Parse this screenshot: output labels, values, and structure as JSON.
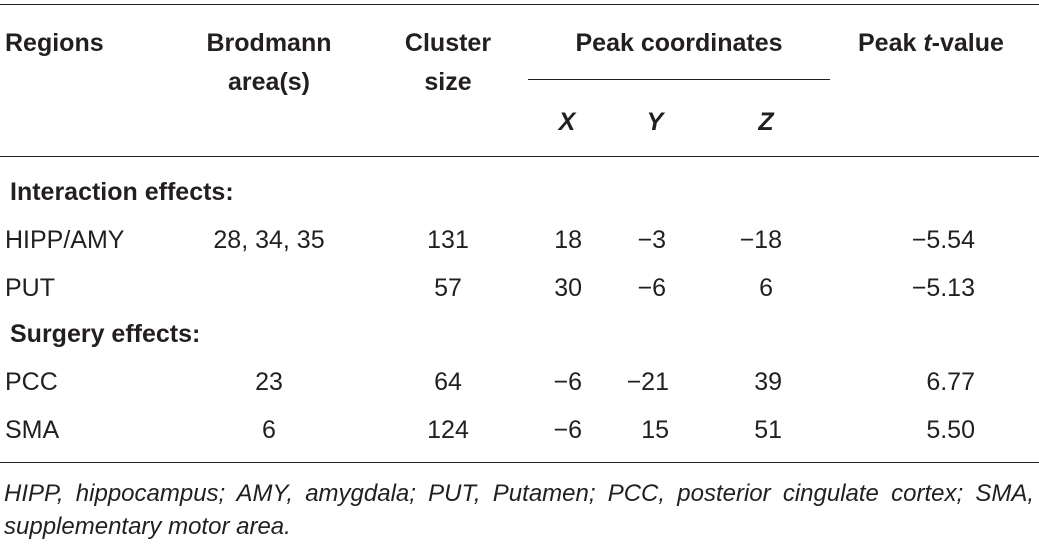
{
  "table": {
    "headers": {
      "regions": "Regions",
      "brodmann": [
        "Brodmann",
        "area(s)"
      ],
      "cluster": [
        "Cluster",
        "size"
      ],
      "peak_coords": "Peak coordinates",
      "peak_t_prefix": "Peak ",
      "peak_t_italic": "t",
      "peak_t_suffix": "-value",
      "x": "X",
      "y": "Y",
      "z": "Z"
    },
    "sections": [
      {
        "title": "Interaction effects:",
        "rows": [
          {
            "region": "HIPP/AMY",
            "brodmann": "28, 34, 35",
            "cluster": "131",
            "x": "18",
            "y": "−3",
            "z": "−18",
            "t": "−5.54"
          },
          {
            "region": "PUT",
            "brodmann": "",
            "cluster": "57",
            "x": "30",
            "y": "−6",
            "z": "6",
            "t": "−5.13"
          }
        ]
      },
      {
        "title": "Surgery effects:",
        "rows": [
          {
            "region": "PCC",
            "brodmann": "23",
            "cluster": "64",
            "x": "−6",
            "y": "−21",
            "z": "39",
            "t": "6.77"
          },
          {
            "region": "SMA",
            "brodmann": "6",
            "cluster": "124",
            "x": "−6",
            "y": "15",
            "z": "51",
            "t": "5.50"
          }
        ]
      }
    ],
    "footnote": "HIPP, hippocampus; AMY, amygdala; PUT, Putamen; PCC, posterior cingulate cortex; SMA, supplementary motor area."
  }
}
